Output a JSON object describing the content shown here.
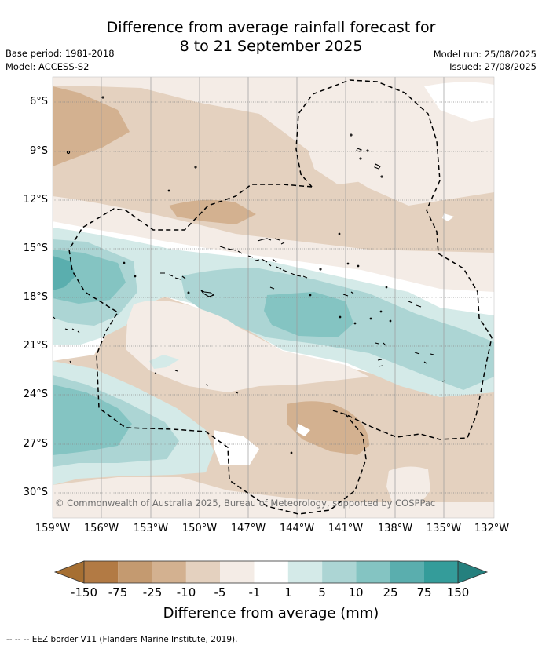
{
  "title_line1": "Difference from average rainfall forecast for",
  "title_line2": "8 to 21 September 2025",
  "base_period": "Base period: 1981-2018",
  "model": "Model: ACCESS-S2",
  "model_run": "Model run: 25/08/2025",
  "issued": "Issued: 27/08/2025",
  "y_ticks": [
    "6°S",
    "9°S",
    "12°S",
    "15°S",
    "18°S",
    "21°S",
    "24°S",
    "27°S",
    "30°S"
  ],
  "x_ticks": [
    "159°W",
    "156°W",
    "153°W",
    "150°W",
    "147°W",
    "144°W",
    "141°W",
    "138°W",
    "135°W",
    "132°W"
  ],
  "colorbar_labels": [
    "-150",
    "-75",
    "-25",
    "-10",
    "-5",
    "-1",
    "1",
    "5",
    "10",
    "25",
    "75",
    "150"
  ],
  "colorbar_colors": [
    "#a66f32",
    "#b27a44",
    "#c49a70",
    "#d3b190",
    "#e4d1bf",
    "#f4ece6",
    "#ffffff",
    "#d4eae8",
    "#acd5d4",
    "#84c4c2",
    "#5aaeae",
    "#349c9a",
    "#25807e"
  ],
  "colorbar_title": "Difference from average (mm)",
  "copyright": "© Commonwealth of Australia 2025, Bureau of Meteorology, supported by COSPPac",
  "legend": "-- -- -- EEZ border V11 (Flanders Marine Institute, 2019)."
}
